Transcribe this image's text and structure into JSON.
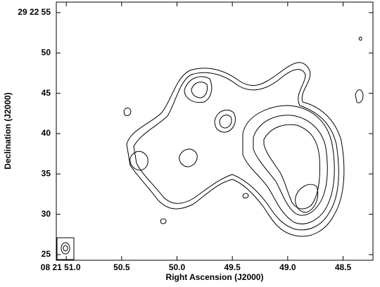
{
  "chart_data": {
    "type": "contour",
    "xlabel": "Right Ascension (J2000)",
    "ylabel": "Declination (J2000)",
    "xlim": [
      51.09,
      48.23
    ],
    "ylim": [
      24.3,
      56.3
    ],
    "xticks": [
      {
        "value": 51.0,
        "label": "08 21 51.0"
      },
      50.5,
      {
        "value": 50,
        "label": "50.0"
      },
      49.5,
      {
        "value": 49,
        "label": "49.0"
      },
      48.5
    ],
    "yticks": [
      {
        "value": 55,
        "label": "29 22 55"
      },
      50,
      45,
      40,
      35,
      30,
      25
    ]
  }
}
